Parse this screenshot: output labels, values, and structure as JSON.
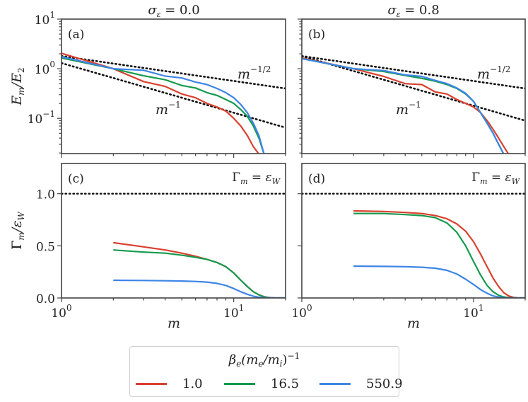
{
  "chart_data": [
    {
      "id": "a",
      "type": "line",
      "panel_label": "(a)",
      "title": "σ_ε = 0.0",
      "xlabel": "",
      "ylabel": "E_m / E_2",
      "xscale": "log",
      "yscale": "log",
      "xlim": [
        1,
        20
      ],
      "ylim": [
        0.0195,
        10
      ],
      "yticks": [
        {
          "v": 10,
          "label": "10",
          "exp": "1"
        },
        {
          "v": 1,
          "label": "10",
          "exp": "0"
        },
        {
          "v": 0.1,
          "label": "10",
          "exp": "−1"
        }
      ],
      "reference_lines": [
        {
          "name": "m^-1/2",
          "label": "m",
          "exp": "−1/2",
          "x": [
            1,
            20
          ],
          "y": [
            1.8,
            0.4
          ],
          "style": "dotted"
        },
        {
          "name": "m^-1",
          "label": "m",
          "exp": "−1",
          "x": [
            1,
            20
          ],
          "y": [
            1.3,
            0.065
          ],
          "style": "dotted"
        }
      ],
      "series": [
        {
          "name": "1.0",
          "color": "#d9412f",
          "x": [
            1,
            2,
            3,
            4,
            5,
            6,
            7,
            8,
            9,
            10,
            11,
            12,
            13,
            14
          ],
          "y": [
            2.05,
            1.0,
            0.55,
            0.44,
            0.31,
            0.26,
            0.2,
            0.17,
            0.14,
            0.1,
            0.07,
            0.045,
            0.027,
            0.019
          ]
        },
        {
          "name": "16.5",
          "color": "#159a4e",
          "x": [
            1,
            2,
            3,
            4,
            5,
            6,
            7,
            8,
            9,
            10,
            11,
            12,
            13,
            14,
            15
          ],
          "y": [
            1.65,
            1.0,
            0.72,
            0.6,
            0.46,
            0.41,
            0.33,
            0.29,
            0.24,
            0.2,
            0.15,
            0.11,
            0.07,
            0.04,
            0.019
          ]
        },
        {
          "name": "550.9",
          "color": "#3d85e6",
          "x": [
            1,
            2,
            3,
            4,
            5,
            6,
            7,
            8,
            9,
            10,
            11,
            12,
            13,
            14,
            15
          ],
          "y": [
            1.75,
            1.0,
            0.93,
            0.71,
            0.65,
            0.54,
            0.48,
            0.4,
            0.33,
            0.26,
            0.19,
            0.13,
            0.08,
            0.045,
            0.019
          ]
        }
      ]
    },
    {
      "id": "b",
      "type": "line",
      "panel_label": "(b)",
      "title": "σ_ε = 0.8",
      "xlabel": "",
      "ylabel": "",
      "xscale": "log",
      "yscale": "log",
      "xlim": [
        1,
        20
      ],
      "ylim": [
        0.0195,
        10
      ],
      "reference_lines": [
        {
          "name": "m^-1/2",
          "label": "m",
          "exp": "−1/2",
          "x": [
            1,
            20
          ],
          "y": [
            1.8,
            0.4
          ],
          "style": "dotted"
        },
        {
          "name": "m^-1",
          "label": "m",
          "exp": "−1",
          "x": [
            1,
            20
          ],
          "y": [
            1.8,
            0.09
          ],
          "style": "dotted"
        }
      ],
      "series": [
        {
          "name": "1.0",
          "color": "#d9412f",
          "x": [
            1,
            2,
            3,
            4,
            5,
            6,
            7,
            8,
            9,
            10,
            11,
            12,
            13,
            14,
            15,
            16
          ],
          "y": [
            1.65,
            1.0,
            0.7,
            0.5,
            0.48,
            0.34,
            0.31,
            0.24,
            0.2,
            0.17,
            0.13,
            0.09,
            0.06,
            0.04,
            0.027,
            0.019
          ]
        },
        {
          "name": "16.5",
          "color": "#159a4e",
          "x": [
            1,
            2,
            3,
            4,
            5,
            6,
            7,
            8,
            9,
            10,
            11,
            12,
            13,
            14,
            15
          ],
          "y": [
            1.6,
            1.0,
            0.88,
            0.73,
            0.64,
            0.56,
            0.48,
            0.4,
            0.31,
            0.22,
            0.13,
            0.08,
            0.05,
            0.03,
            0.019
          ]
        },
        {
          "name": "550.9",
          "color": "#3d85e6",
          "x": [
            1,
            2,
            3,
            4,
            5,
            6,
            7,
            8,
            9,
            10,
            11,
            12,
            13,
            14,
            15
          ],
          "y": [
            1.6,
            1.0,
            0.92,
            0.75,
            0.7,
            0.58,
            0.5,
            0.41,
            0.32,
            0.22,
            0.13,
            0.08,
            0.05,
            0.03,
            0.019
          ]
        }
      ]
    },
    {
      "id": "c",
      "type": "line",
      "panel_label": "(c)",
      "title": "",
      "xlabel": "m",
      "ylabel": "Γ_m / ε_W",
      "xscale": "log",
      "yscale": "linear",
      "xlim": [
        1,
        20
      ],
      "ylim": [
        0,
        1.29
      ],
      "xticks": [
        {
          "v": 1,
          "label": "10",
          "exp": "0"
        },
        {
          "v": 10,
          "label": "10",
          "exp": "1"
        }
      ],
      "yticks": [
        {
          "v": 0,
          "label": "0.0"
        },
        {
          "v": 0.5,
          "label": "0.5"
        },
        {
          "v": 1.0,
          "label": "1.0"
        }
      ],
      "reference_lines": [
        {
          "name": "Gamma_m=eps_W",
          "label": "Γ_m = ε_W",
          "y": 1.0,
          "style": "dotted"
        }
      ],
      "series": [
        {
          "name": "1.0",
          "color": "#d9412f",
          "x": [
            2,
            3,
            4,
            5,
            6,
            7,
            8,
            9,
            10,
            11,
            12,
            13,
            14,
            15,
            16,
            17,
            18,
            20
          ],
          "y": [
            0.53,
            0.49,
            0.46,
            0.43,
            0.4,
            0.37,
            0.34,
            0.3,
            0.24,
            0.17,
            0.11,
            0.06,
            0.03,
            0.012,
            0.004,
            0.001,
            0,
            0
          ]
        },
        {
          "name": "16.5",
          "color": "#159a4e",
          "x": [
            2,
            3,
            4,
            5,
            6,
            7,
            8,
            9,
            10,
            11,
            12,
            13,
            14,
            15,
            16,
            17,
            18,
            20
          ],
          "y": [
            0.46,
            0.44,
            0.43,
            0.41,
            0.39,
            0.37,
            0.34,
            0.3,
            0.24,
            0.17,
            0.11,
            0.06,
            0.03,
            0.01,
            0.003,
            0.001,
            0,
            0
          ]
        },
        {
          "name": "550.9",
          "color": "#3d85e6",
          "x": [
            2,
            3,
            4,
            5,
            6,
            7,
            8,
            9,
            10,
            11,
            12,
            13,
            14,
            15,
            16,
            17,
            20
          ],
          "y": [
            0.17,
            0.168,
            0.165,
            0.162,
            0.158,
            0.152,
            0.14,
            0.12,
            0.09,
            0.06,
            0.035,
            0.017,
            0.007,
            0.002,
            0.001,
            0,
            0
          ]
        }
      ]
    },
    {
      "id": "d",
      "type": "line",
      "panel_label": "(d)",
      "title": "",
      "xlabel": "m",
      "ylabel": "",
      "xscale": "log",
      "yscale": "linear",
      "xlim": [
        1,
        20
      ],
      "ylim": [
        0,
        1.29
      ],
      "xticks": [
        {
          "v": 1,
          "label": "10",
          "exp": "0"
        },
        {
          "v": 10,
          "label": "10",
          "exp": "1"
        }
      ],
      "reference_lines": [
        {
          "name": "Gamma_m=eps_W",
          "label": "Γ_m = ε_W",
          "y": 1.0,
          "style": "dotted"
        }
      ],
      "series": [
        {
          "name": "1.0",
          "color": "#d9412f",
          "x": [
            2,
            3,
            4,
            5,
            6,
            7,
            8,
            9,
            10,
            11,
            12,
            13,
            14,
            15,
            16,
            17,
            18,
            20
          ],
          "y": [
            0.835,
            0.83,
            0.82,
            0.81,
            0.79,
            0.76,
            0.71,
            0.64,
            0.54,
            0.42,
            0.3,
            0.19,
            0.11,
            0.05,
            0.02,
            0.006,
            0.001,
            0
          ]
        },
        {
          "name": "16.5",
          "color": "#159a4e",
          "x": [
            2,
            3,
            4,
            5,
            6,
            7,
            8,
            9,
            10,
            11,
            12,
            13,
            14,
            15,
            16,
            17,
            18,
            20
          ],
          "y": [
            0.81,
            0.81,
            0.8,
            0.79,
            0.77,
            0.72,
            0.63,
            0.5,
            0.35,
            0.22,
            0.12,
            0.06,
            0.025,
            0.01,
            0.003,
            0.001,
            0,
            0
          ]
        },
        {
          "name": "550.9",
          "color": "#3d85e6",
          "x": [
            2,
            3,
            4,
            5,
            6,
            7,
            8,
            9,
            10,
            11,
            12,
            13,
            14,
            15,
            16,
            17,
            20
          ],
          "y": [
            0.305,
            0.303,
            0.3,
            0.295,
            0.285,
            0.265,
            0.23,
            0.18,
            0.13,
            0.08,
            0.045,
            0.02,
            0.008,
            0.003,
            0.001,
            0,
            0
          ]
        }
      ]
    }
  ],
  "legend": {
    "title_base": "β",
    "title_sub": "e",
    "title_mid": "(m",
    "title_sub2": "e",
    "title_slash": "/m",
    "title_sub3": "i",
    "title_close": ")",
    "title_exp": "−1",
    "items": [
      {
        "label": "1.0",
        "color": "#d9412f"
      },
      {
        "label": "16.5",
        "color": "#159a4e"
      },
      {
        "label": "550.9",
        "color": "#3d85e6"
      }
    ]
  },
  "labels": {
    "title_a": "σ",
    "title_a_sub": "ε",
    "title_a_rest": " = 0.0",
    "title_b": "σ",
    "title_b_sub": "ε",
    "title_b_rest": " = 0.8",
    "ylabel_top_E": "E",
    "ylabel_top_sub": "m",
    "ylabel_top_slash": "/E",
    "ylabel_top_sub2": "2",
    "ylabel_bottom_G": "Γ",
    "ylabel_bottom_sub": "m",
    "ylabel_bottom_slash": "/ε",
    "ylabel_bottom_sub2": "W",
    "xlabel": "m",
    "annot_G": "Γ",
    "annot_G_sub": "m",
    "annot_eq": " = ε",
    "annot_eps_sub": "W"
  }
}
